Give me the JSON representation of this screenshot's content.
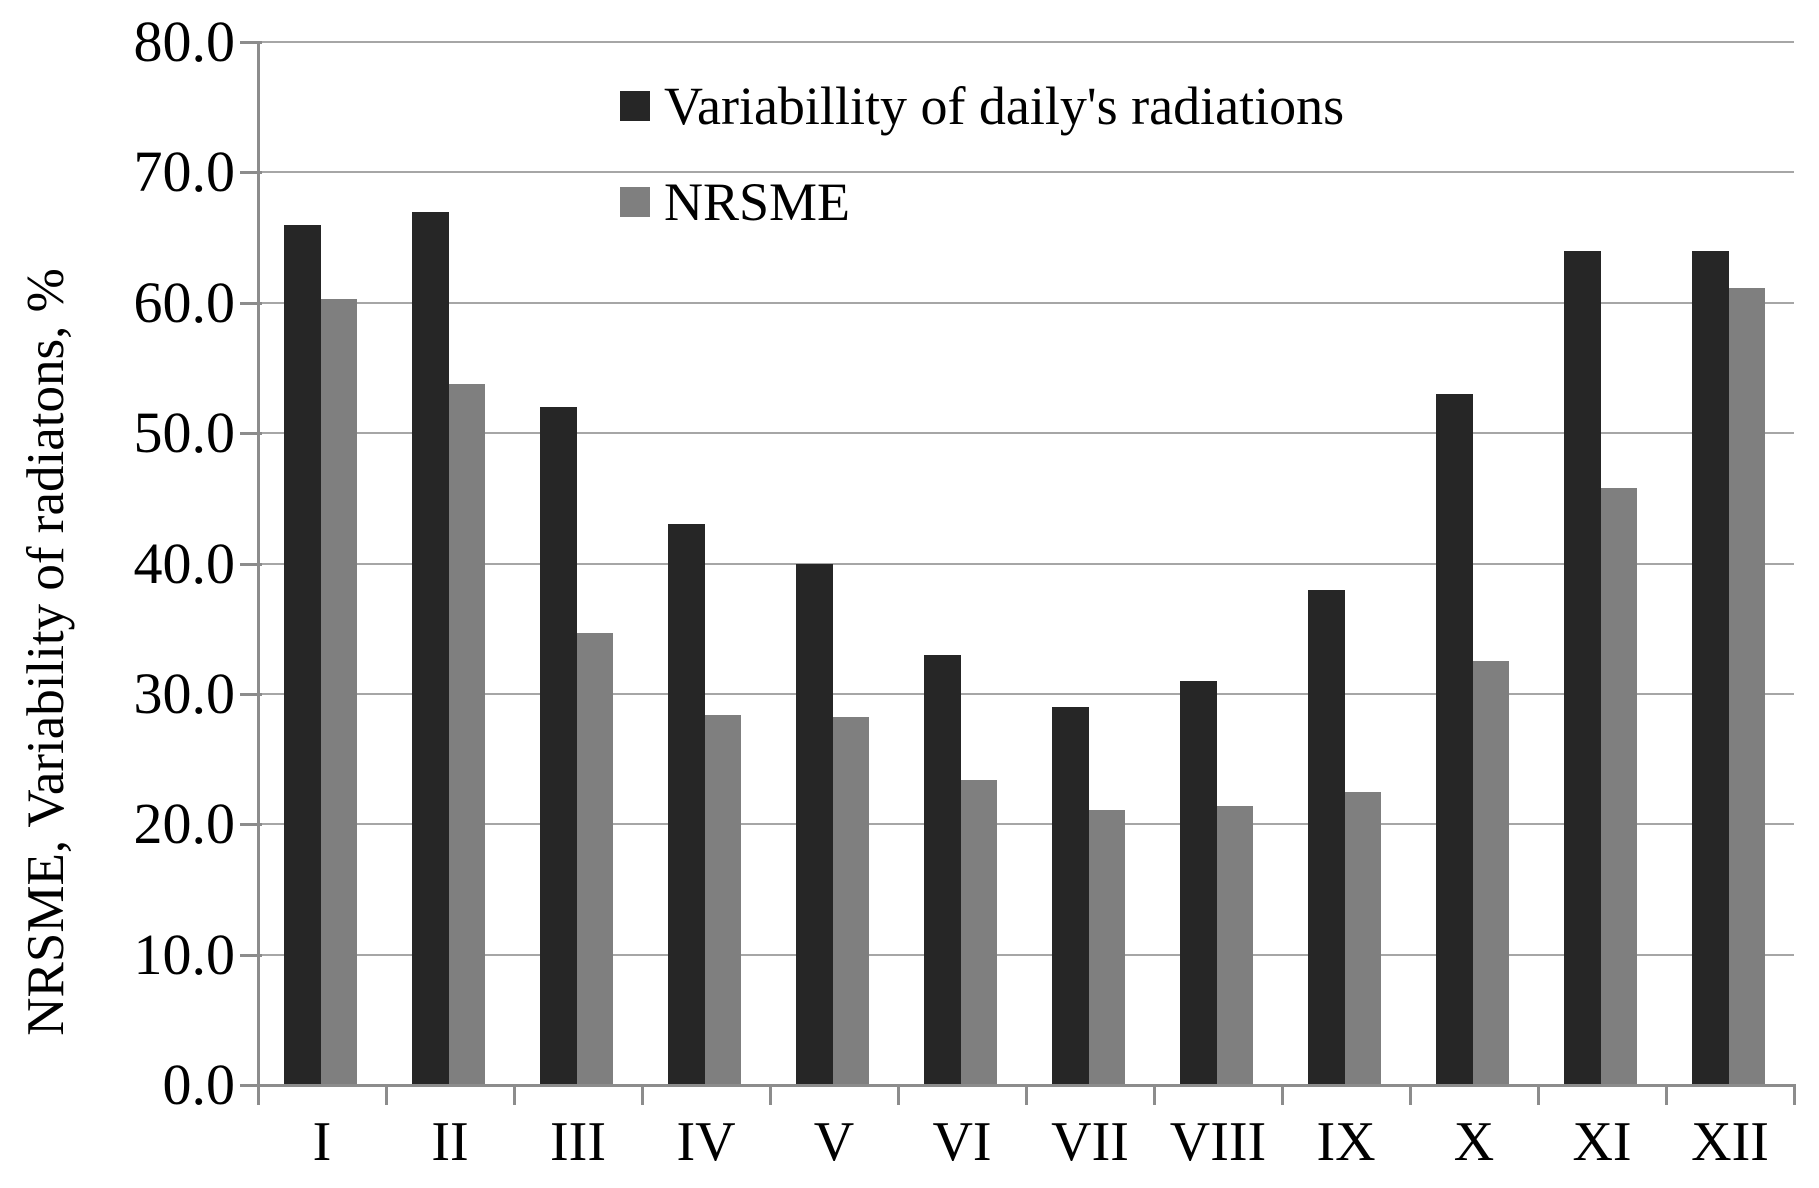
{
  "chart_data": {
    "type": "bar",
    "categories": [
      "I",
      "II",
      "III",
      "IV",
      "V",
      "VI",
      "VII",
      "VIII",
      "IX",
      "X",
      "XI",
      "XII"
    ],
    "series": [
      {
        "name": "Variabillity of daily's radiations",
        "color": "#262626",
        "values": [
          66.0,
          67.0,
          52.0,
          43.0,
          40.0,
          33.0,
          29.0,
          31.0,
          38.0,
          53.0,
          64.0,
          64.0
        ]
      },
      {
        "name": "NRSME",
        "color": "#7f7f7f",
        "values": [
          60.3,
          53.8,
          34.7,
          28.4,
          28.2,
          23.4,
          21.1,
          21.4,
          22.5,
          32.5,
          45.8,
          61.1
        ]
      }
    ],
    "title": "",
    "xlabel": "",
    "ylabel": "NRSME, Variability of radiatons, %",
    "ylim": [
      0,
      80
    ],
    "ytick_step": 10,
    "ytick_labels": [
      "0.0",
      "10.0",
      "20.0",
      "30.0",
      "40.0",
      "50.0",
      "60.0",
      "70.0",
      "80.0"
    ],
    "grid": true,
    "legend_position": "top-inside",
    "gridline_color": "#a6a6a6",
    "axis_color": "#8c8c8c"
  }
}
